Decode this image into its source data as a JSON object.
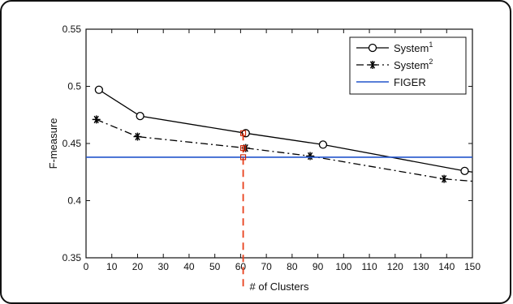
{
  "chart_data": {
    "type": "line",
    "xlabel": "# of Clusters",
    "ylabel": "F-measure",
    "xlim": [
      0,
      150
    ],
    "ylim": [
      0.35,
      0.55
    ],
    "x_ticks": [
      "0",
      "10",
      "20",
      "30",
      "40",
      "50",
      "60",
      "70",
      "80",
      "90",
      "100",
      "110",
      "120",
      "130",
      "140",
      "150"
    ],
    "y_ticks": [
      "0.35",
      "0.4",
      "0.45",
      "0.5",
      "0.55"
    ],
    "legend_position": "top-right",
    "grid": false,
    "series": [
      {
        "name": "System",
        "superscript": "1",
        "style": "solid",
        "marker": "circle",
        "color": "#000000",
        "x": [
          5,
          21,
          62,
          92,
          147,
          150
        ],
        "y": [
          0.497,
          0.474,
          0.459,
          0.449,
          0.426,
          0.425
        ]
      },
      {
        "name": "System",
        "superscript": "2",
        "style": "dash-dot",
        "marker": "star",
        "color": "#000000",
        "x": [
          4,
          20,
          62,
          87,
          139,
          150
        ],
        "y": [
          0.471,
          0.456,
          0.446,
          0.439,
          0.419,
          0.417
        ]
      },
      {
        "name": "FIGER",
        "superscript": "",
        "style": "solid",
        "marker": "none",
        "color": "#2255cc",
        "x": [
          0,
          150
        ],
        "y": [
          0.438,
          0.438
        ]
      }
    ],
    "reference_line": {
      "x": 61,
      "color": "#e8401c",
      "style": "dashed"
    },
    "highlight_markers": {
      "x": 61,
      "y": [
        0.459,
        0.446,
        0.438
      ],
      "color": "#cc2200"
    }
  }
}
